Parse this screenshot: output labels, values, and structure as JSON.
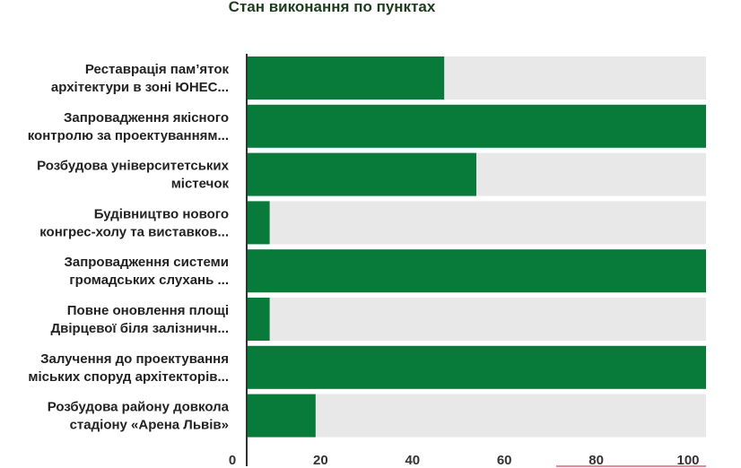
{
  "chart_data": {
    "type": "bar",
    "orientation": "horizontal",
    "title": "Стан виконання по пунктах",
    "categories": [
      [
        "Реставрація пам’яток",
        "архітектури в зоні ЮНЕС..."
      ],
      [
        "Запровадження якісного",
        "контролю за проектуванням..."
      ],
      [
        "Розбудова університетських",
        "містечок"
      ],
      [
        "Будівництво нового",
        "конгрес-холу та виставков..."
      ],
      [
        "Запровадження системи",
        "громадських слухань ..."
      ],
      [
        "Повне оновлення площі",
        "Двірцевої біля залізничн..."
      ],
      [
        "Залучення до проектування",
        "міських споруд архітекторів..."
      ],
      [
        "Розбудова району довкола",
        "стадіону «Арена Львів»"
      ]
    ],
    "values": [
      43,
      100,
      50,
      5,
      100,
      5,
      100,
      15
    ],
    "xlim": [
      0,
      100
    ],
    "xticks": [
      0,
      20,
      40,
      60,
      80,
      100
    ],
    "grid": false,
    "legend": "none",
    "colors": {
      "bar": "#087b3b",
      "track": "#e8e8e8",
      "axis": "#333333",
      "accent_line": "#e06070"
    }
  }
}
